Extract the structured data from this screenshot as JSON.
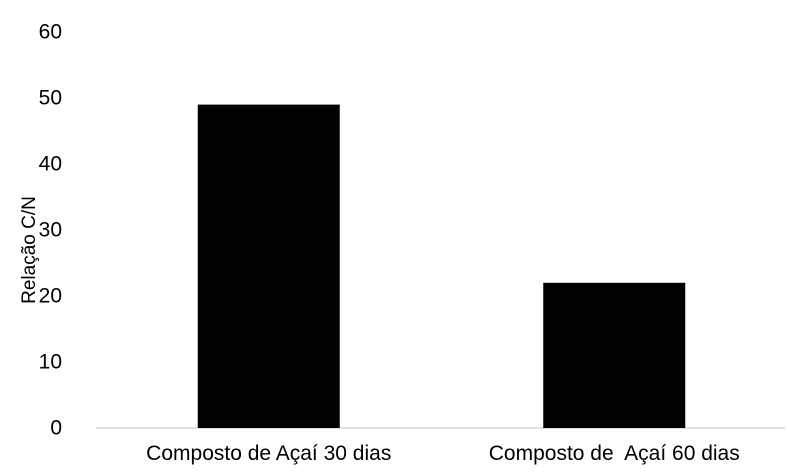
{
  "chart_data": {
    "type": "bar",
    "title": "",
    "xlabel": "",
    "ylabel": "Relação C/N",
    "categories": [
      "Composto de Açaí 30 dias",
      "Composto de  Açaí 60 dias"
    ],
    "series": [
      {
        "values": [
          49,
          22
        ]
      }
    ],
    "ylim": [
      0,
      60
    ],
    "yticks": [
      0,
      10,
      20,
      30,
      40,
      50,
      60
    ],
    "grid": false,
    "legend": "none",
    "bar_color": "#000000",
    "axis_color": "#d9d9d9"
  }
}
